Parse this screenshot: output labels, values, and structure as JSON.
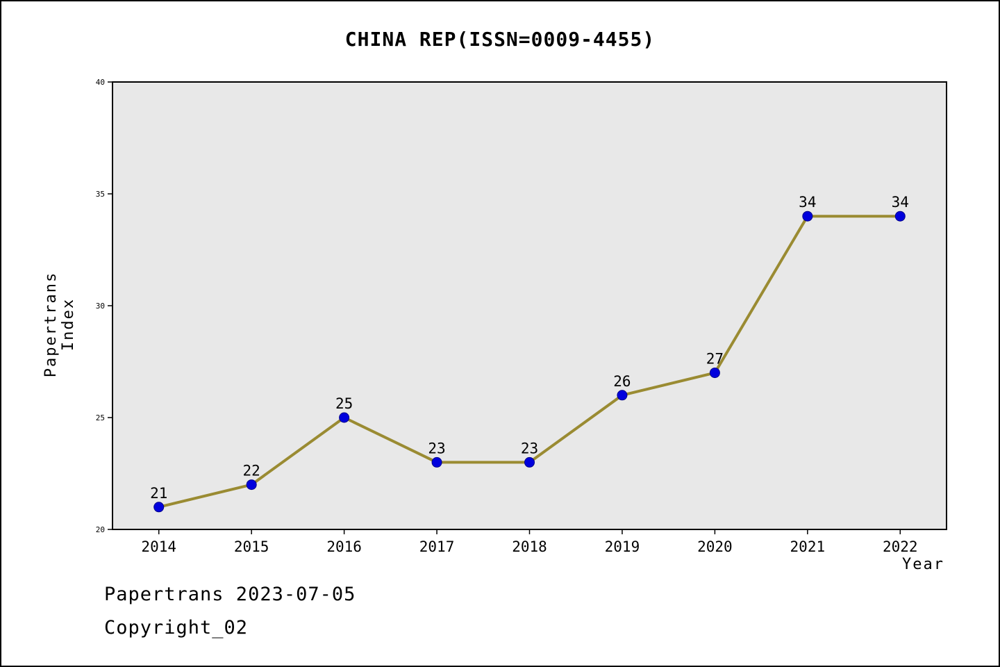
{
  "title": "CHINA REP(ISSN=0009-4455)",
  "footer": {
    "line1": "Papertrans 2023-07-05",
    "line2": "Copyright_02"
  },
  "chart_data": {
    "type": "line",
    "title": "CHINA REP(ISSN=0009-4455)",
    "xlabel": "Year",
    "ylabel": "Papertrans Index",
    "categories": [
      "2014",
      "2015",
      "2016",
      "2017",
      "2018",
      "2019",
      "2020",
      "2021",
      "2022"
    ],
    "values": [
      21,
      22,
      25,
      23,
      23,
      26,
      27,
      34,
      34
    ],
    "ylim": [
      20,
      40
    ],
    "yticks": [
      20,
      25,
      30,
      35,
      40
    ],
    "grid": "off",
    "legend": "none",
    "colors": {
      "line": "#9a8b32",
      "marker_fill": "#0000dd",
      "marker_edge": "#00008b",
      "plot_background": "#e8e8e8",
      "axis": "#000000",
      "text": "#000000"
    },
    "style": {
      "line_width": 4,
      "marker_radius": 7
    }
  }
}
